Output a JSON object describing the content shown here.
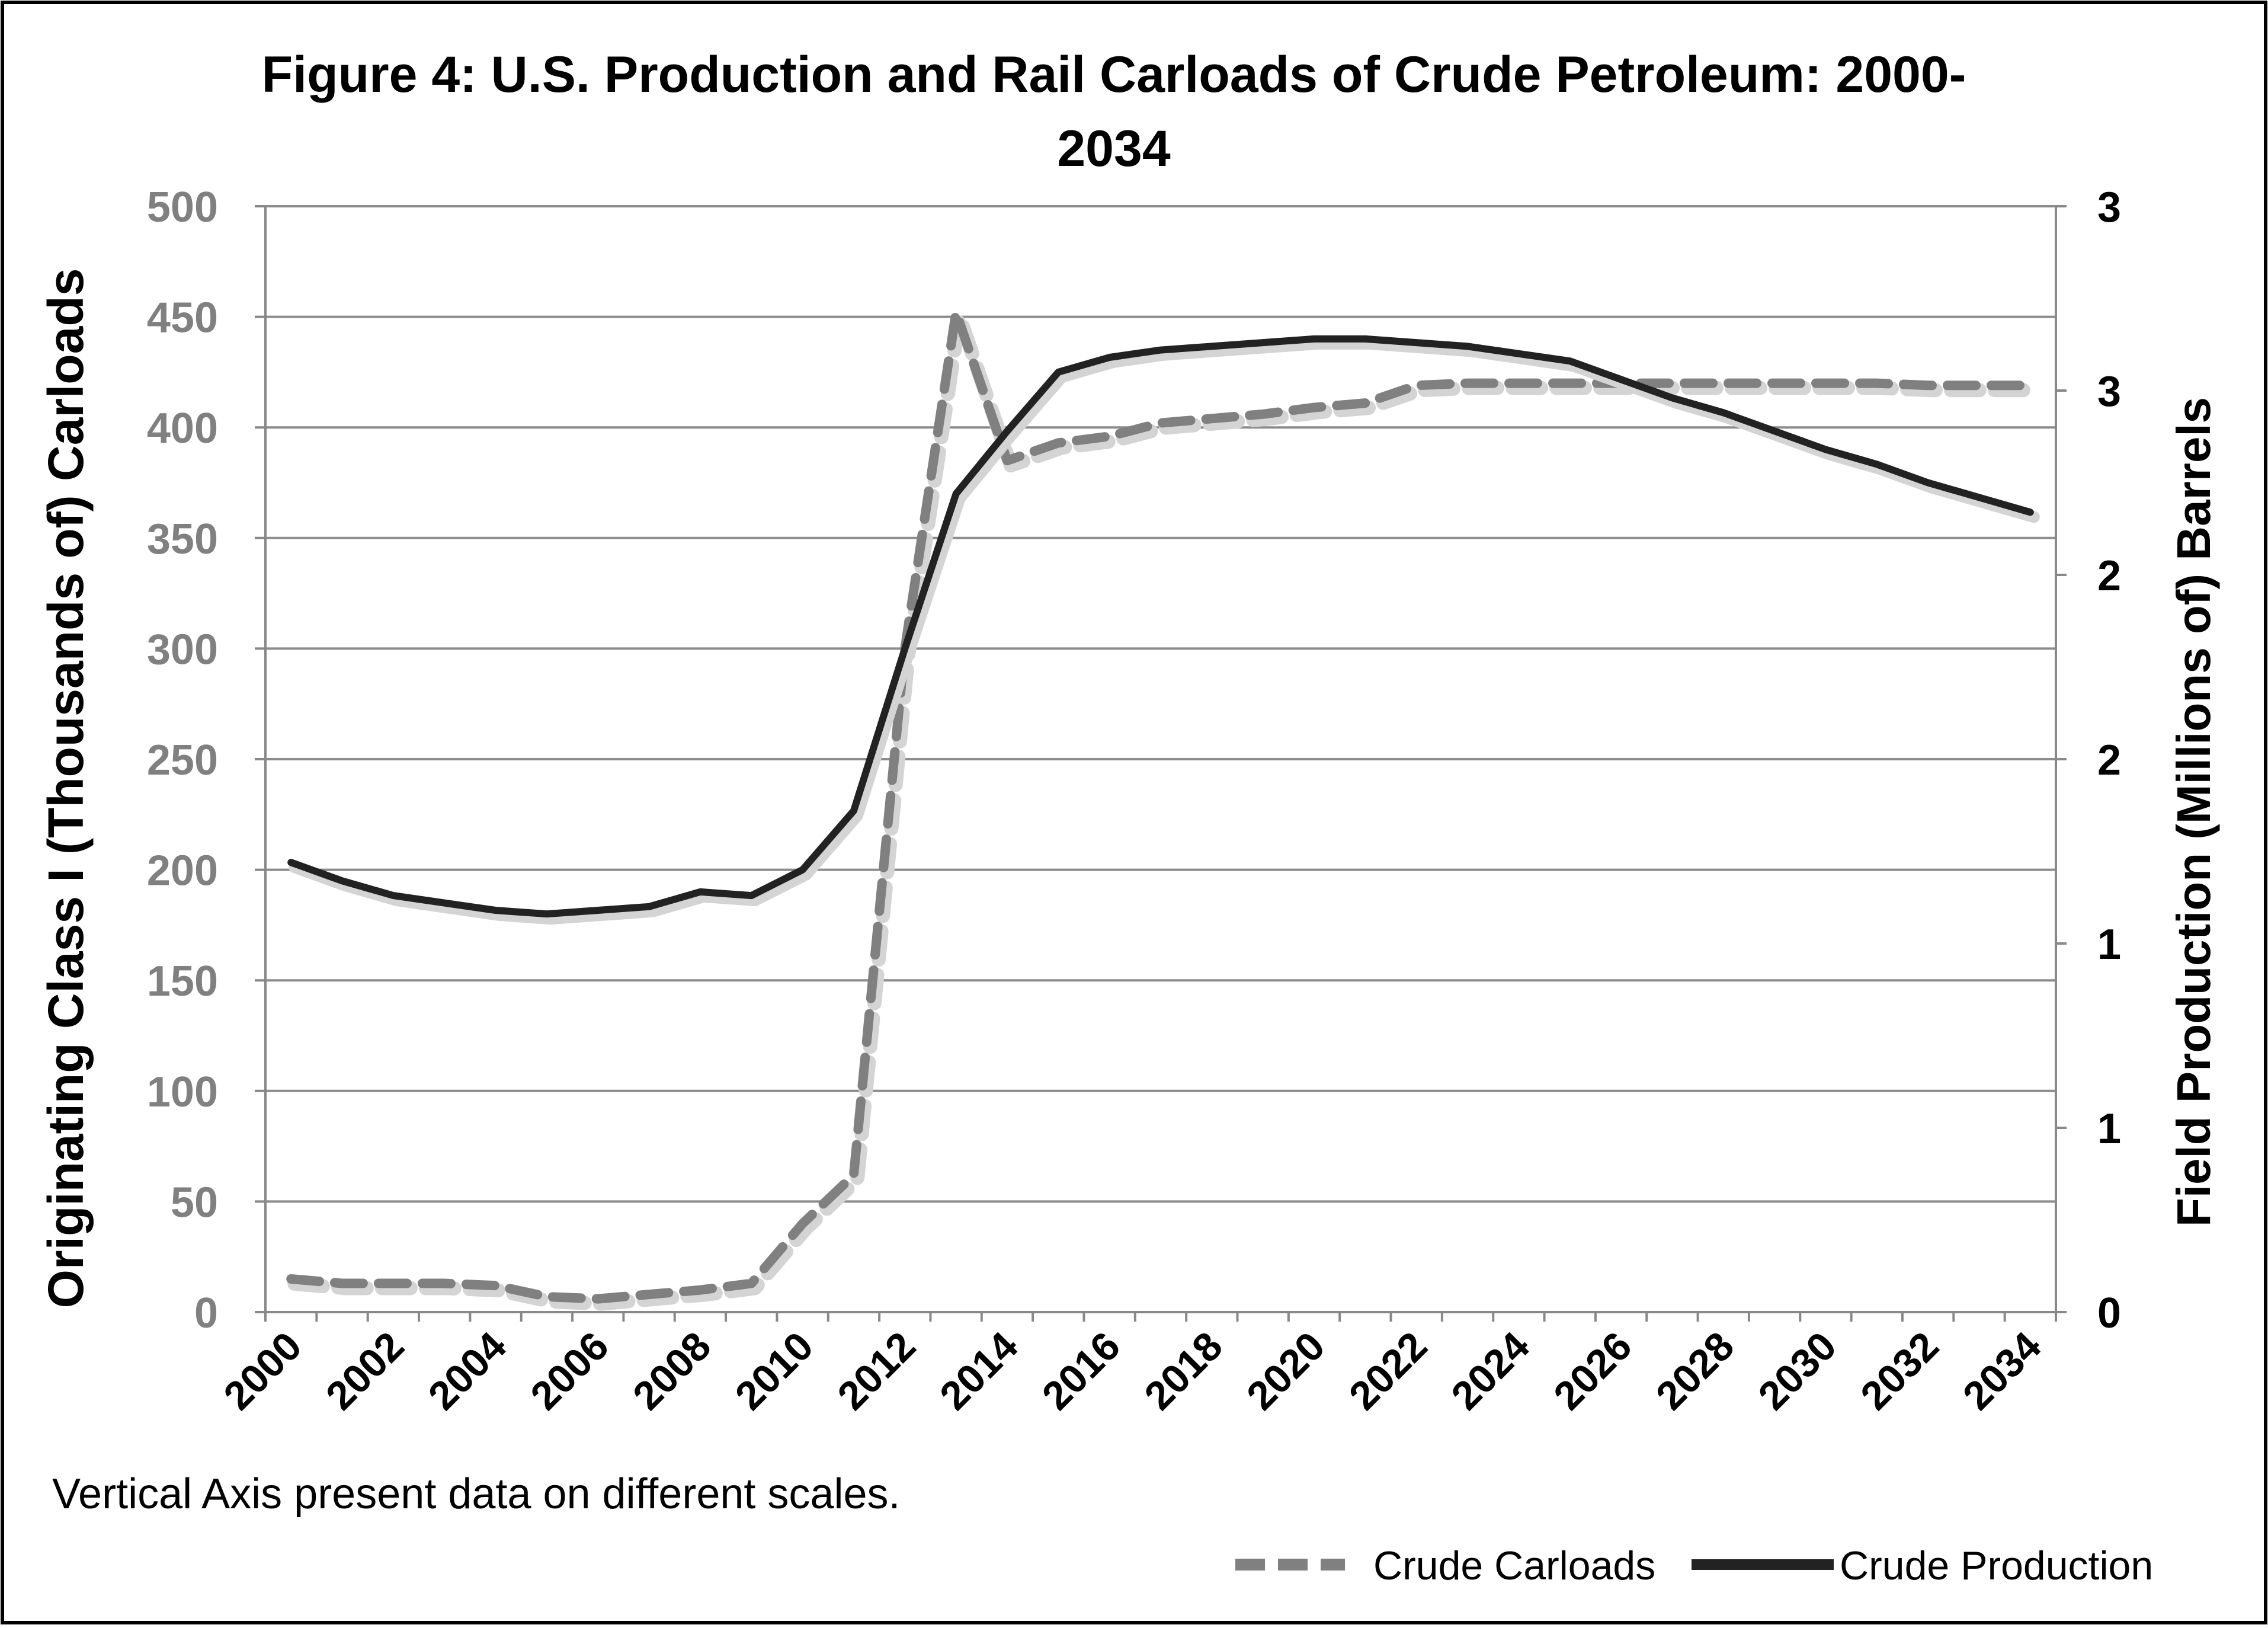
{
  "chart_data": {
    "type": "line",
    "title_line1": "Figure 4: U.S. Production and Rail Carloads of Crude Petroleum: 2000-",
    "title_line2": "2034",
    "ylabel_left": "Originating Class I (Thousands of) Carloads",
    "ylabel_right": "Field Production (Millions of) Barrels",
    "footnote": "Vertical Axis present data on different scales.",
    "ylim_left": [
      0,
      500
    ],
    "ylim_right": [
      0,
      3
    ],
    "left_ticks": [
      {
        "value": 0,
        "label": "0"
      },
      {
        "value": 50,
        "label": "50"
      },
      {
        "value": 100,
        "label": "100"
      },
      {
        "value": 150,
        "label": "150"
      },
      {
        "value": 200,
        "label": "200"
      },
      {
        "value": 250,
        "label": "250"
      },
      {
        "value": 300,
        "label": "300"
      },
      {
        "value": 350,
        "label": "350"
      },
      {
        "value": 400,
        "label": "400"
      },
      {
        "value": 450,
        "label": "450"
      },
      {
        "value": 500,
        "label": "500"
      }
    ],
    "right_ticks": [
      {
        "value": 0,
        "label": "0"
      },
      {
        "value": 0.5,
        "label": "1"
      },
      {
        "value": 1.0,
        "label": "1"
      },
      {
        "value": 1.5,
        "label": "2"
      },
      {
        "value": 2.0,
        "label": "2"
      },
      {
        "value": 2.5,
        "label": "3"
      },
      {
        "value": 3.0,
        "label": "3"
      }
    ],
    "x_tick_labels": [
      "2000",
      "2002",
      "2004",
      "2006",
      "2008",
      "2010",
      "2012",
      "2014",
      "2016",
      "2018",
      "2020",
      "2022",
      "2024",
      "2026",
      "2028",
      "2030",
      "2032",
      "2034"
    ],
    "x": [
      2000,
      2001,
      2002,
      2003,
      2004,
      2005,
      2006,
      2007,
      2008,
      2009,
      2010,
      2011,
      2012,
      2013,
      2014,
      2015,
      2016,
      2017,
      2018,
      2019,
      2020,
      2021,
      2022,
      2023,
      2024,
      2025,
      2026,
      2027,
      2028,
      2029,
      2030,
      2031,
      2032,
      2033,
      2034
    ],
    "series": [
      {
        "name": "Crude Carloads",
        "axis": "left",
        "style": "dashed",
        "color": "#808080",
        "values": [
          15,
          13,
          13,
          13,
          12,
          7,
          6,
          8,
          10,
          13,
          40,
          62,
          300,
          452,
          385,
          393,
          396,
          402,
          404,
          406,
          409,
          411,
          419,
          420,
          420,
          420,
          420,
          420,
          420,
          420,
          420,
          420,
          419,
          419,
          419
        ]
      },
      {
        "name": "Crude Production",
        "axis": "right",
        "style": "solid",
        "color": "#222222",
        "values": [
          1.22,
          1.17,
          1.13,
          1.11,
          1.09,
          1.08,
          1.09,
          1.1,
          1.14,
          1.13,
          1.2,
          1.36,
          1.8,
          2.22,
          2.39,
          2.55,
          2.59,
          2.61,
          2.62,
          2.63,
          2.64,
          2.64,
          2.63,
          2.62,
          2.6,
          2.58,
          2.53,
          2.48,
          2.44,
          2.39,
          2.34,
          2.3,
          2.25,
          2.21,
          2.17
        ]
      }
    ],
    "legend": [
      {
        "label": "Crude Carloads",
        "style": "dashed"
      },
      {
        "label": "Crude Production",
        "style": "solid"
      }
    ]
  }
}
